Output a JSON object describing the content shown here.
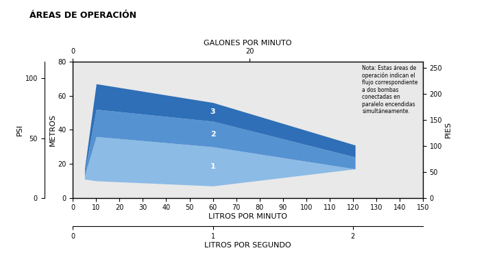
{
  "chart_data": {
    "type": "area",
    "title": "ÁREAS DE OPERACIÓN",
    "note": "Nota: Estas áreas de operación indican el flujo correspondiente a dos bombas conectadas en paralelo encendidas simultáneamente.",
    "x_label": "LITROS POR MINUTO",
    "y_label": "METROS",
    "xlim": [
      0,
      150
    ],
    "xticks": [
      0,
      10,
      20,
      30,
      40,
      50,
      60,
      70,
      80,
      90,
      100,
      110,
      120,
      130,
      140,
      150
    ],
    "ylim": [
      0,
      80
    ],
    "yticks": [
      0,
      20,
      40,
      60,
      80
    ],
    "grid": false,
    "x": [
      5,
      10,
      60,
      121
    ],
    "series": [
      {
        "name": "1",
        "color": "#8cbbe6",
        "lower": [
          11,
          10,
          7,
          17
        ],
        "upper": [
          13,
          36,
          30,
          17
        ]
      },
      {
        "name": "2",
        "color": "#5592d2",
        "lower": [
          13,
          36,
          30,
          17
        ],
        "upper": [
          15,
          52,
          45,
          24
        ]
      },
      {
        "name": "3",
        "color": "#2e6fb7",
        "lower": [
          15,
          52,
          45,
          24
        ],
        "upper": [
          17,
          67,
          56,
          31
        ]
      }
    ],
    "psi_axis": {
      "label": "PSI",
      "lim": [
        0,
        114
      ],
      "ticks": [
        0,
        50,
        100
      ]
    },
    "feet_axis": {
      "label": "PIES",
      "lim": [
        0,
        262
      ],
      "ticks": [
        0,
        50,
        100,
        150,
        200,
        250
      ]
    },
    "gpm_axis": {
      "label": "GALONES POR MINUTO",
      "lim": [
        0,
        39.6
      ],
      "ticks": [
        0,
        20
      ]
    },
    "lps_axis": {
      "label": "LITROS POR SEGUNDO",
      "lim": [
        0,
        2.5
      ],
      "ticks": [
        0,
        1,
        2
      ]
    }
  }
}
